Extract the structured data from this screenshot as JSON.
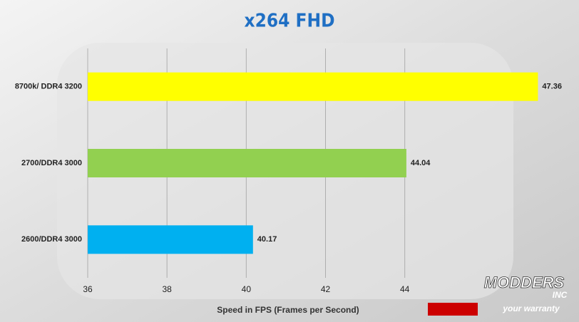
{
  "chart_data": {
    "type": "bar",
    "orientation": "horizontal",
    "title": "x264 FHD",
    "categories": [
      "8700k/ DDR4 3200",
      "2700/DDR4 3000",
      "2600/DDR4 3000"
    ],
    "values": [
      47.36,
      44.04,
      40.17
    ],
    "colors": [
      "#ffff00",
      "#92d050",
      "#00b0f0"
    ],
    "x_label": "Speed in FPS (Frames per Second)",
    "xlim": [
      36,
      48
    ],
    "xticks": [
      36,
      38,
      40,
      42,
      44
    ],
    "grid": true,
    "watermark": [
      "MODDERS",
      "INC",
      "your warranty"
    ]
  }
}
